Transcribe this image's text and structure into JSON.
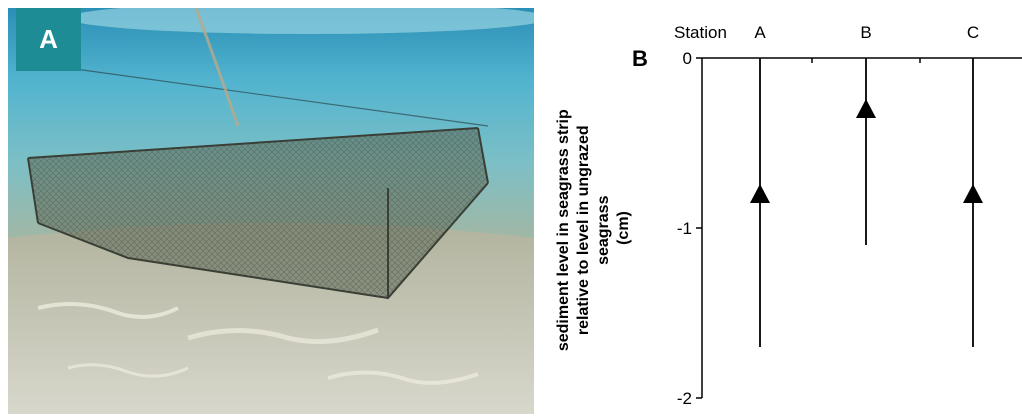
{
  "panel_a": {
    "label": "A"
  },
  "chart_data": {
    "type": "scatter",
    "panel_label": "B",
    "x_header": "Station",
    "categories": [
      "A",
      "B",
      "C"
    ],
    "ylabel_lines": [
      "sediment level in seagrass strip",
      "relative to level in ungrazed",
      "seagrass",
      "(cm)"
    ],
    "ylim": [
      -2,
      0
    ],
    "yticks": [
      0,
      -1,
      -2
    ],
    "ytick_labels": [
      "0",
      "-1",
      "-2"
    ],
    "grid": false,
    "series": [
      {
        "marker": "triangle",
        "values": [
          -0.8,
          -0.3,
          -0.8
        ],
        "error_low": [
          -1.7,
          -1.1,
          -1.7
        ],
        "error_high": [
          0,
          0,
          0
        ]
      }
    ]
  }
}
